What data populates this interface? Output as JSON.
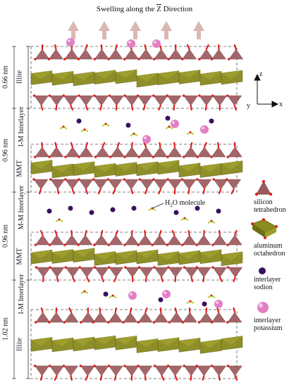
{
  "title": {
    "prefix": "Swelling along the ",
    "axis": "Z",
    "suffix": " Direction"
  },
  "axes": {
    "z": "z",
    "y": "y",
    "x": "x"
  },
  "measurements": [
    "0.66 nm",
    "0.96 nm",
    "0.96 nm",
    "1.02 nm"
  ],
  "layer_labels": [
    "Illite",
    "I-M Interlayer",
    "MMT",
    "M-M Interlayer",
    "MMT",
    "I-M Interlayer",
    "Illite"
  ],
  "annotation": {
    "molecule": "H",
    "sub": "2",
    "rest": "O molecule"
  },
  "legend": [
    {
      "line1": "silicon",
      "line2": "tetrahedron"
    },
    {
      "line1": "aluminum",
      "line2": "octahedron"
    },
    {
      "line1": "interlayer",
      "line2": "sodion"
    },
    {
      "line1": "interlayer",
      "line2": "potassium"
    }
  ],
  "colors": {
    "tetrahedron": "#9c5a5e",
    "octahedron": "#8a8a1e",
    "oxygen": "#e0201a",
    "sodion": "#3a1060",
    "potassium": "#e27fc3",
    "water": "#b7d23a",
    "arrow": "#d9b8b0"
  }
}
